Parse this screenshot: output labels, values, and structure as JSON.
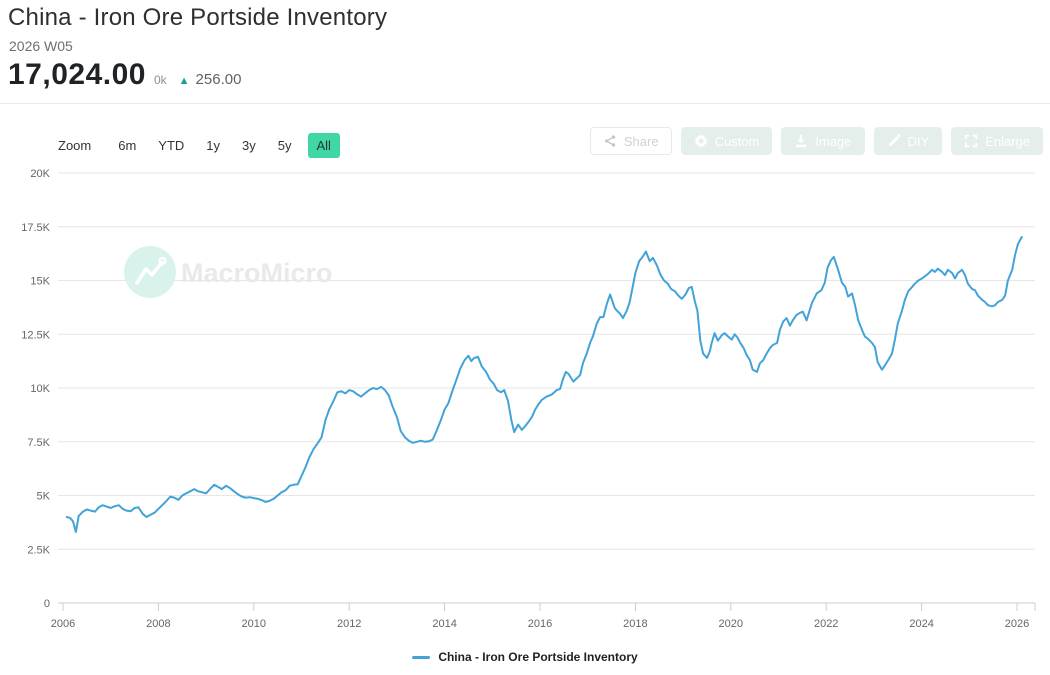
{
  "header": {
    "title": "China - Iron Ore Portside Inventory",
    "period": "2026 W05",
    "latest_value": "17,024.00",
    "unit_suffix": "0k",
    "change_arrow": "▲",
    "change_value": "256.00",
    "change_direction": "up"
  },
  "range_selector": {
    "zoom_label": "Zoom",
    "options": [
      "6m",
      "YTD",
      "1y",
      "3y",
      "5y",
      "All"
    ],
    "selected": "All"
  },
  "actions": [
    {
      "label": "Share",
      "icon": "share-icon",
      "style": "outline"
    },
    {
      "label": "Custom",
      "icon": "gear-icon",
      "style": "filled"
    },
    {
      "label": "Image",
      "icon": "download-icon",
      "style": "filled"
    },
    {
      "label": "DIY",
      "icon": "pencil-icon",
      "style": "filled"
    },
    {
      "label": "Enlarge",
      "icon": "enlarge-icon",
      "style": "filled"
    }
  ],
  "watermark": {
    "text": "MacroMicro"
  },
  "legend": [
    {
      "label": "China - Iron Ore Portside Inventory",
      "color": "#41a3d7"
    }
  ],
  "colors": {
    "line": "#41a3d7",
    "selected_range_bg": "#41d6a6",
    "up_arrow": "#17a08c",
    "grid": "#e6e6e6",
    "axis": "#cccccc",
    "tick_label": "#666666",
    "watermark_circle": "#d9f3ec",
    "watermark_text": "#e9e9e9"
  },
  "chart_data": {
    "type": "line",
    "title": "China - Iron Ore Portside Inventory",
    "grid": "horizontal",
    "legend_position": "bottom-center",
    "x_axis": {
      "min": 2006,
      "max": 2026.4,
      "tick_years": [
        2006,
        2008,
        2010,
        2012,
        2014,
        2016,
        2018,
        2020,
        2022,
        2024,
        2026
      ]
    },
    "y_axis": {
      "min": 0,
      "max": 20000,
      "ticks": [
        {
          "v": 0,
          "label": "0"
        },
        {
          "v": 2500,
          "label": "2.5K"
        },
        {
          "v": 5000,
          "label": "5K"
        },
        {
          "v": 7500,
          "label": "7.5K"
        },
        {
          "v": 10000,
          "label": "10K"
        },
        {
          "v": 12500,
          "label": "12.5K"
        },
        {
          "v": 15000,
          "label": "15K"
        },
        {
          "v": 17500,
          "label": "17.5K"
        },
        {
          "v": 20000,
          "label": "20K"
        }
      ]
    },
    "series": [
      {
        "name": "China - Iron Ore Portside Inventory",
        "color": "#41a3d7",
        "points": [
          [
            2006.08,
            4000
          ],
          [
            2006.15,
            3950
          ],
          [
            2006.21,
            3800
          ],
          [
            2006.27,
            3300
          ],
          [
            2006.33,
            4050
          ],
          [
            2006.42,
            4250
          ],
          [
            2006.5,
            4350
          ],
          [
            2006.58,
            4300
          ],
          [
            2006.67,
            4250
          ],
          [
            2006.75,
            4450
          ],
          [
            2006.83,
            4550
          ],
          [
            2006.92,
            4480
          ],
          [
            2007,
            4420
          ],
          [
            2007.08,
            4500
          ],
          [
            2007.17,
            4550
          ],
          [
            2007.25,
            4380
          ],
          [
            2007.33,
            4300
          ],
          [
            2007.42,
            4270
          ],
          [
            2007.5,
            4420
          ],
          [
            2007.58,
            4450
          ],
          [
            2007.67,
            4150
          ],
          [
            2007.75,
            4000
          ],
          [
            2007.83,
            4100
          ],
          [
            2007.92,
            4200
          ],
          [
            2008,
            4380
          ],
          [
            2008.08,
            4550
          ],
          [
            2008.17,
            4750
          ],
          [
            2008.25,
            4950
          ],
          [
            2008.33,
            4900
          ],
          [
            2008.42,
            4800
          ],
          [
            2008.5,
            5000
          ],
          [
            2008.58,
            5100
          ],
          [
            2008.67,
            5200
          ],
          [
            2008.75,
            5300
          ],
          [
            2008.83,
            5200
          ],
          [
            2008.92,
            5150
          ],
          [
            2009,
            5100
          ],
          [
            2009.08,
            5300
          ],
          [
            2009.17,
            5500
          ],
          [
            2009.25,
            5400
          ],
          [
            2009.33,
            5300
          ],
          [
            2009.42,
            5450
          ],
          [
            2009.5,
            5350
          ],
          [
            2009.58,
            5200
          ],
          [
            2009.67,
            5050
          ],
          [
            2009.75,
            4950
          ],
          [
            2009.83,
            4900
          ],
          [
            2009.92,
            4920
          ],
          [
            2010,
            4880
          ],
          [
            2010.08,
            4850
          ],
          [
            2010.17,
            4780
          ],
          [
            2010.25,
            4700
          ],
          [
            2010.33,
            4750
          ],
          [
            2010.42,
            4850
          ],
          [
            2010.5,
            5000
          ],
          [
            2010.58,
            5150
          ],
          [
            2010.67,
            5250
          ],
          [
            2010.75,
            5450
          ],
          [
            2010.83,
            5500
          ],
          [
            2010.92,
            5520
          ],
          [
            2011,
            5900
          ],
          [
            2011.08,
            6300
          ],
          [
            2011.17,
            6800
          ],
          [
            2011.25,
            7150
          ],
          [
            2011.33,
            7400
          ],
          [
            2011.42,
            7700
          ],
          [
            2011.5,
            8500
          ],
          [
            2011.58,
            9000
          ],
          [
            2011.67,
            9400
          ],
          [
            2011.75,
            9800
          ],
          [
            2011.83,
            9850
          ],
          [
            2011.92,
            9750
          ],
          [
            2012,
            9900
          ],
          [
            2012.08,
            9850
          ],
          [
            2012.17,
            9700
          ],
          [
            2012.25,
            9600
          ],
          [
            2012.33,
            9750
          ],
          [
            2012.42,
            9900
          ],
          [
            2012.5,
            10000
          ],
          [
            2012.58,
            9950
          ],
          [
            2012.67,
            10050
          ],
          [
            2012.75,
            9900
          ],
          [
            2012.83,
            9650
          ],
          [
            2012.9,
            9200
          ],
          [
            2013,
            8650
          ],
          [
            2013.08,
            8000
          ],
          [
            2013.17,
            7700
          ],
          [
            2013.25,
            7550
          ],
          [
            2013.33,
            7450
          ],
          [
            2013.42,
            7500
          ],
          [
            2013.5,
            7550
          ],
          [
            2013.58,
            7500
          ],
          [
            2013.67,
            7520
          ],
          [
            2013.75,
            7600
          ],
          [
            2013.83,
            8000
          ],
          [
            2013.92,
            8500
          ],
          [
            2014,
            9000
          ],
          [
            2014.08,
            9300
          ],
          [
            2014.17,
            9900
          ],
          [
            2014.25,
            10400
          ],
          [
            2014.33,
            10900
          ],
          [
            2014.42,
            11300
          ],
          [
            2014.5,
            11500
          ],
          [
            2014.56,
            11250
          ],
          [
            2014.62,
            11400
          ],
          [
            2014.7,
            11450
          ],
          [
            2014.78,
            11000
          ],
          [
            2014.87,
            10750
          ],
          [
            2014.95,
            10400
          ],
          [
            2015.03,
            10200
          ],
          [
            2015.1,
            9900
          ],
          [
            2015.18,
            9800
          ],
          [
            2015.25,
            9900
          ],
          [
            2015.33,
            9400
          ],
          [
            2015.4,
            8500
          ],
          [
            2015.46,
            7950
          ],
          [
            2015.54,
            8300
          ],
          [
            2015.62,
            8050
          ],
          [
            2015.68,
            8200
          ],
          [
            2015.75,
            8400
          ],
          [
            2015.83,
            8650
          ],
          [
            2015.9,
            9000
          ],
          [
            2015.97,
            9250
          ],
          [
            2016.04,
            9450
          ],
          [
            2016.14,
            9600
          ],
          [
            2016.25,
            9700
          ],
          [
            2016.35,
            9900
          ],
          [
            2016.42,
            9950
          ],
          [
            2016.48,
            10400
          ],
          [
            2016.54,
            10750
          ],
          [
            2016.6,
            10650
          ],
          [
            2016.7,
            10300
          ],
          [
            2016.77,
            10450
          ],
          [
            2016.84,
            10600
          ],
          [
            2016.9,
            11150
          ],
          [
            2016.98,
            11600
          ],
          [
            2017.05,
            12100
          ],
          [
            2017.11,
            12400
          ],
          [
            2017.19,
            13000
          ],
          [
            2017.26,
            13300
          ],
          [
            2017.33,
            13300
          ],
          [
            2017.4,
            13900
          ],
          [
            2017.47,
            14350
          ],
          [
            2017.57,
            13700
          ],
          [
            2017.68,
            13450
          ],
          [
            2017.74,
            13250
          ],
          [
            2017.82,
            13600
          ],
          [
            2017.88,
            14000
          ],
          [
            2018,
            15350
          ],
          [
            2018.08,
            15900
          ],
          [
            2018.15,
            16100
          ],
          [
            2018.22,
            16350
          ],
          [
            2018.3,
            15900
          ],
          [
            2018.37,
            16050
          ],
          [
            2018.45,
            15700
          ],
          [
            2018.52,
            15300
          ],
          [
            2018.6,
            15000
          ],
          [
            2018.68,
            14850
          ],
          [
            2018.75,
            14600
          ],
          [
            2018.83,
            14500
          ],
          [
            2018.9,
            14300
          ],
          [
            2018.97,
            14150
          ],
          [
            2019.05,
            14350
          ],
          [
            2019.12,
            14650
          ],
          [
            2019.18,
            14700
          ],
          [
            2019.25,
            14000
          ],
          [
            2019.3,
            13600
          ],
          [
            2019.36,
            12200
          ],
          [
            2019.42,
            11600
          ],
          [
            2019.5,
            11400
          ],
          [
            2019.56,
            11700
          ],
          [
            2019.6,
            12100
          ],
          [
            2019.66,
            12550
          ],
          [
            2019.73,
            12200
          ],
          [
            2019.81,
            12450
          ],
          [
            2019.87,
            12550
          ],
          [
            2019.94,
            12400
          ],
          [
            2020.02,
            12250
          ],
          [
            2020.08,
            12500
          ],
          [
            2020.14,
            12350
          ],
          [
            2020.2,
            12100
          ],
          [
            2020.27,
            11850
          ],
          [
            2020.33,
            11550
          ],
          [
            2020.4,
            11300
          ],
          [
            2020.46,
            10850
          ],
          [
            2020.55,
            10750
          ],
          [
            2020.61,
            11150
          ],
          [
            2020.68,
            11300
          ],
          [
            2020.75,
            11600
          ],
          [
            2020.82,
            11850
          ],
          [
            2020.88,
            12000
          ],
          [
            2020.97,
            12100
          ],
          [
            2021.03,
            12700
          ],
          [
            2021.1,
            13100
          ],
          [
            2021.17,
            13250
          ],
          [
            2021.24,
            12900
          ],
          [
            2021.3,
            13150
          ],
          [
            2021.38,
            13400
          ],
          [
            2021.45,
            13500
          ],
          [
            2021.51,
            13550
          ],
          [
            2021.59,
            13150
          ],
          [
            2021.7,
            13950
          ],
          [
            2021.8,
            14400
          ],
          [
            2021.9,
            14550
          ],
          [
            2021.97,
            14900
          ],
          [
            2022.03,
            15600
          ],
          [
            2022.1,
            15950
          ],
          [
            2022.16,
            16100
          ],
          [
            2022.25,
            15500
          ],
          [
            2022.33,
            14900
          ],
          [
            2022.4,
            14700
          ],
          [
            2022.46,
            14250
          ],
          [
            2022.54,
            14400
          ],
          [
            2022.6,
            13900
          ],
          [
            2022.67,
            13150
          ],
          [
            2022.75,
            12700
          ],
          [
            2022.81,
            12400
          ],
          [
            2022.87,
            12300
          ],
          [
            2022.96,
            12100
          ],
          [
            2023.02,
            11900
          ],
          [
            2023.08,
            11200
          ],
          [
            2023.17,
            10850
          ],
          [
            2023.23,
            11050
          ],
          [
            2023.3,
            11300
          ],
          [
            2023.38,
            11600
          ],
          [
            2023.44,
            12250
          ],
          [
            2023.5,
            13000
          ],
          [
            2023.59,
            13600
          ],
          [
            2023.65,
            14100
          ],
          [
            2023.72,
            14500
          ],
          [
            2023.8,
            14700
          ],
          [
            2023.86,
            14850
          ],
          [
            2023.93,
            15000
          ],
          [
            2024.01,
            15100
          ],
          [
            2024.07,
            15200
          ],
          [
            2024.13,
            15300
          ],
          [
            2024.22,
            15500
          ],
          [
            2024.28,
            15400
          ],
          [
            2024.34,
            15550
          ],
          [
            2024.43,
            15400
          ],
          [
            2024.49,
            15250
          ],
          [
            2024.55,
            15500
          ],
          [
            2024.64,
            15350
          ],
          [
            2024.7,
            15100
          ],
          [
            2024.76,
            15350
          ],
          [
            2024.85,
            15500
          ],
          [
            2024.91,
            15250
          ],
          [
            2024.97,
            14850
          ],
          [
            2025.06,
            14600
          ],
          [
            2025.12,
            14550
          ],
          [
            2025.18,
            14300
          ],
          [
            2025.27,
            14100
          ],
          [
            2025.33,
            14000
          ],
          [
            2025.39,
            13850
          ],
          [
            2025.48,
            13800
          ],
          [
            2025.54,
            13850
          ],
          [
            2025.6,
            14000
          ],
          [
            2025.69,
            14100
          ],
          [
            2025.75,
            14300
          ],
          [
            2025.81,
            15000
          ],
          [
            2025.9,
            15500
          ],
          [
            2025.96,
            16200
          ],
          [
            2026.02,
            16700
          ],
          [
            2026.1,
            17024
          ]
        ]
      }
    ]
  }
}
